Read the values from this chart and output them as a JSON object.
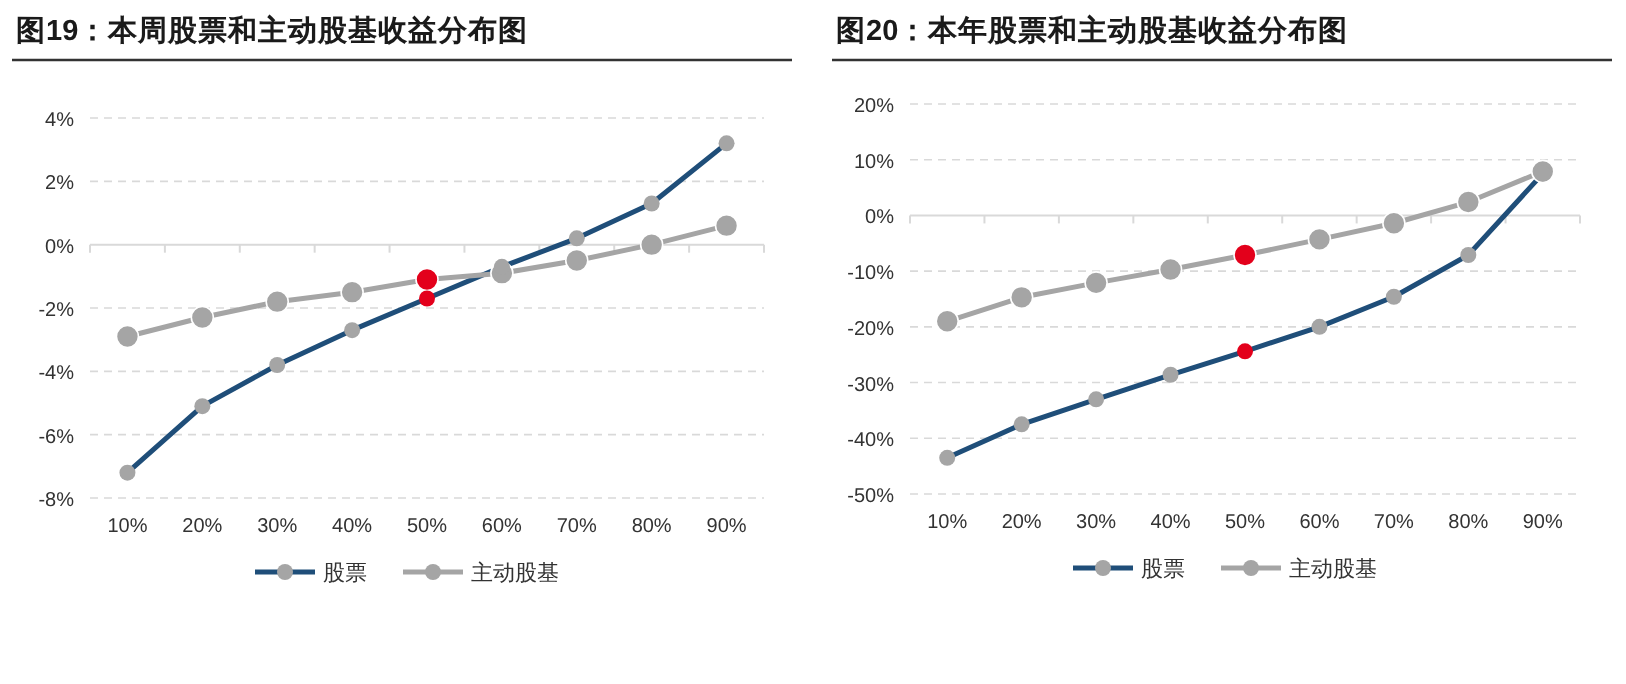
{
  "chart_data": [
    {
      "type": "line",
      "title": "图19：本周股票和主动股基收益分布图",
      "categories": [
        "10%",
        "20%",
        "30%",
        "40%",
        "50%",
        "60%",
        "70%",
        "80%",
        "90%"
      ],
      "series": [
        {
          "name": "股票",
          "color": "#1f4e79",
          "colors": [
            "#a5a5a5",
            "#a5a5a5",
            "#a5a5a5",
            "#a5a5a5",
            "#e3001b",
            "#a5a5a5",
            "#a5a5a5",
            "#a5a5a5",
            "#a5a5a5"
          ],
          "values": [
            -7.2,
            -5.1,
            -3.8,
            -2.7,
            -1.7,
            -0.7,
            0.2,
            1.3,
            3.2
          ]
        },
        {
          "name": "主动股基",
          "color": "#a5a5a5",
          "colors": [
            "#a5a5a5",
            "#a5a5a5",
            "#a5a5a5",
            "#a5a5a5",
            "#e3001b",
            "#a5a5a5",
            "#a5a5a5",
            "#a5a5a5",
            "#a5a5a5"
          ],
          "values": [
            -2.9,
            -2.3,
            -1.8,
            -1.5,
            -1.1,
            -0.9,
            -0.5,
            0.0,
            0.6
          ]
        }
      ],
      "ylim": [
        -8,
        4
      ],
      "yticks": [
        {
          "value": -8,
          "label": "-8%"
        },
        {
          "value": -6,
          "label": "-6%"
        },
        {
          "value": -4,
          "label": "-4%"
        },
        {
          "value": -2,
          "label": "-2%"
        },
        {
          "value": 0,
          "label": "0%"
        },
        {
          "value": 2,
          "label": "2%"
        },
        {
          "value": 4,
          "label": "4%"
        }
      ],
      "grid": "y",
      "legend": "bottom",
      "marker": "circle",
      "line_style": "solid"
    },
    {
      "type": "line",
      "title": "图20：本年股票和主动股基收益分布图",
      "categories": [
        "10%",
        "20%",
        "30%",
        "40%",
        "50%",
        "60%",
        "70%",
        "80%",
        "90%"
      ],
      "series": [
        {
          "name": "股票",
          "color": "#1f4e79",
          "colors": [
            "#a5a5a5",
            "#a5a5a5",
            "#a5a5a5",
            "#a5a5a5",
            "#e3001b",
            "#a5a5a5",
            "#a5a5a5",
            "#a5a5a5",
            "#a5a5a5"
          ],
          "values": [
            -43.5,
            -37.5,
            -33.0,
            -28.6,
            -24.4,
            -20.0,
            -14.6,
            -7.1,
            7.5
          ]
        },
        {
          "name": "主动股基",
          "color": "#a5a5a5",
          "colors": [
            "#a5a5a5",
            "#a5a5a5",
            "#a5a5a5",
            "#a5a5a5",
            "#e3001b",
            "#a5a5a5",
            "#a5a5a5",
            "#a5a5a5",
            "#a5a5a5"
          ],
          "values": [
            -19.0,
            -14.7,
            -12.1,
            -9.7,
            -7.1,
            -4.3,
            -1.4,
            2.4,
            7.9
          ]
        }
      ],
      "ylim": [
        -50,
        20
      ],
      "yticks": [
        {
          "value": -50,
          "label": "-50%"
        },
        {
          "value": -40,
          "label": "-40%"
        },
        {
          "value": -30,
          "label": "-30%"
        },
        {
          "value": -20,
          "label": "-20%"
        },
        {
          "value": -10,
          "label": "-10%"
        },
        {
          "value": 0,
          "label": "0%"
        },
        {
          "value": 10,
          "label": "10%"
        },
        {
          "value": 20,
          "label": "20%"
        }
      ],
      "grid": "y",
      "legend": "bottom",
      "marker": "circle",
      "line_style": "solid"
    }
  ]
}
